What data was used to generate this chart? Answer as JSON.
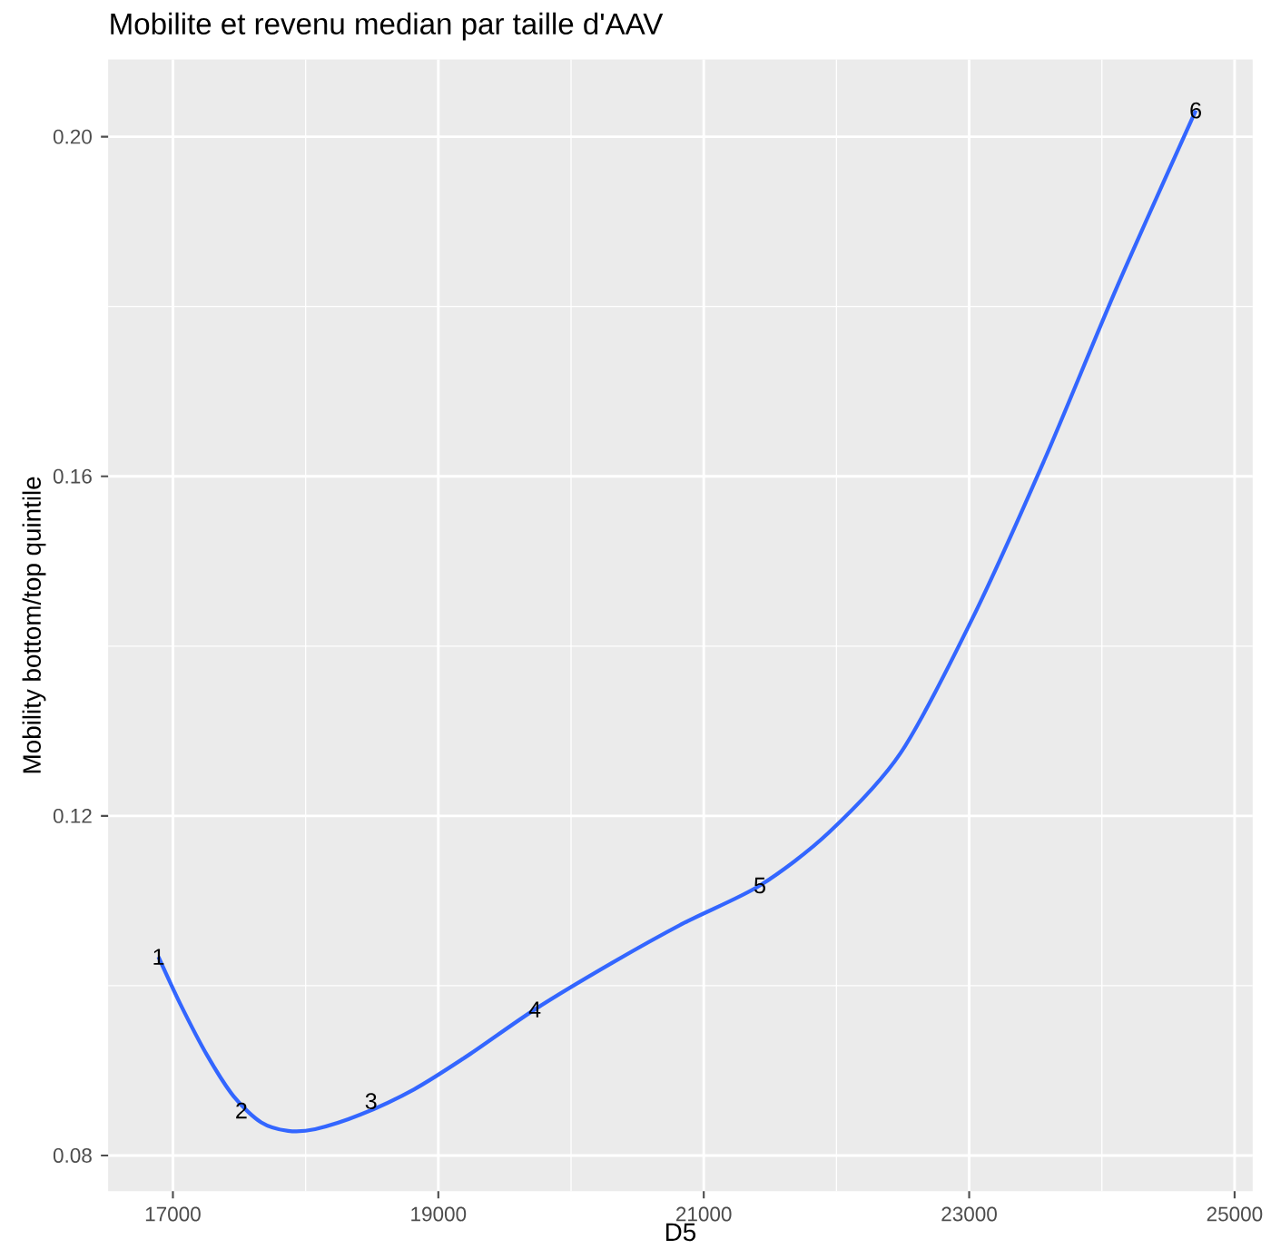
{
  "chart_data": {
    "type": "line",
    "title": "Mobilite et revenu median  par taille d'AAV",
    "xlabel": "D5",
    "ylabel": "Mobility bottom/top quintile",
    "xlim": [
      16512,
      25136
    ],
    "ylim": [
      0.0758,
      0.2091
    ],
    "xticks": [
      17000,
      19000,
      21000,
      23000,
      25000
    ],
    "yticks": [
      0.08,
      0.12,
      0.16,
      {
        "value": 0.2,
        "label": "0.20"
      }
    ],
    "grid": true,
    "series": [
      {
        "color": "#3366ff",
        "x": [
          16891,
          17054,
          17258,
          17461,
          17665,
          17868,
          18072,
          18411,
          18818,
          19225,
          19727,
          20311,
          20853,
          21423,
          21940,
          22483,
          23026,
          23569,
          24111,
          24708
        ],
        "values": [
          0.1034,
          0.0979,
          0.0918,
          0.0869,
          0.0839,
          0.0829,
          0.0831,
          0.0848,
          0.0878,
          0.0918,
          0.0972,
          0.1027,
          0.1074,
          0.1118,
          0.118,
          0.1274,
          0.1433,
          0.162,
          0.1822,
          0.2031
        ]
      }
    ],
    "annotations": [
      {
        "text": "1",
        "x": 16891,
        "y": 0.1034
      },
      {
        "text": "2",
        "x": 17516,
        "y": 0.0853
      },
      {
        "text": "3",
        "x": 18493,
        "y": 0.0864
      },
      {
        "text": "4",
        "x": 19727,
        "y": 0.0972
      },
      {
        "text": "5",
        "x": 21423,
        "y": 0.1118
      },
      {
        "text": "6",
        "x": 24707,
        "y": 0.2031
      }
    ]
  }
}
